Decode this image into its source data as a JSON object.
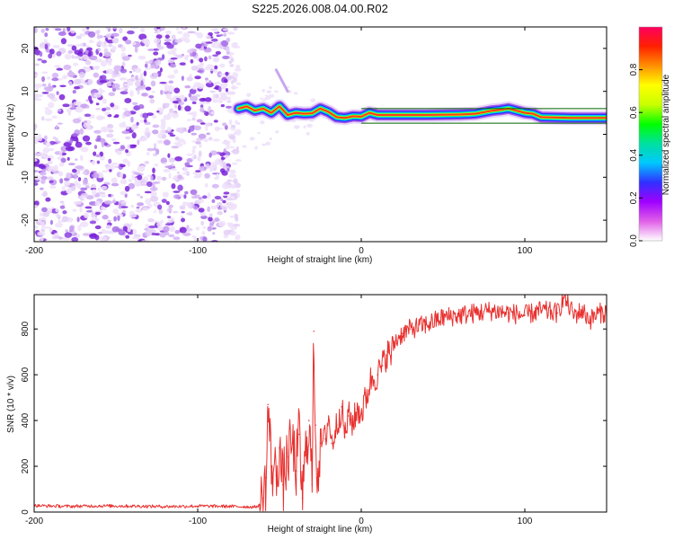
{
  "title": "S225.2026.008.04.00.R02",
  "chart_data": [
    {
      "type": "heatmap",
      "title": "S225.2026.008.04.00.R02",
      "xlabel": "Height of straight line (km)",
      "ylabel": "Frequency (Hz)",
      "xlim": [
        -200,
        150
      ],
      "ylim": [
        -25,
        25
      ],
      "xticks": [
        -200,
        -100,
        0,
        100
      ],
      "yticks": [
        -20,
        -10,
        0,
        10,
        20
      ],
      "noise_region_x": [
        -200,
        -75
      ],
      "signal_trace": {
        "x": [
          -75,
          -70,
          -65,
          -60,
          -55,
          -50,
          -45,
          -40,
          -35,
          -30,
          -25,
          -20,
          -15,
          -10,
          -5,
          0,
          5,
          10,
          20,
          40,
          60,
          70,
          80,
          85,
          90,
          95,
          100,
          105,
          110,
          130,
          150
        ],
        "frequency": [
          6,
          6.5,
          5.5,
          6,
          5,
          6.5,
          4.5,
          5,
          4.8,
          4.9,
          6,
          5.2,
          4,
          3.8,
          4.2,
          4.1,
          5,
          4.5,
          4.5,
          4.5,
          4.6,
          4.8,
          5.5,
          5.7,
          6,
          5.5,
          5,
          4.8,
          4,
          3.8,
          3.8
        ]
      },
      "colorbar": {
        "label": "Normalized spectral amplitude",
        "ticks": [
          "0.0",
          "0.2",
          "0.4",
          "0.6",
          "0.8"
        ],
        "range": [
          0,
          1
        ],
        "colors": [
          "#ffffff",
          "#e060e8",
          "#a000ff",
          "#3030ff",
          "#00c8ff",
          "#00e0a0",
          "#00ff00",
          "#c8ff00",
          "#ffff00",
          "#ff9000",
          "#ff2000",
          "#ff0060"
        ]
      }
    },
    {
      "type": "line",
      "xlabel": "Height of straight line (km)",
      "ylabel": "SNR (10 * v/v)",
      "xlim": [
        -200,
        150
      ],
      "ylim": [
        0,
        950
      ],
      "xticks": [
        -200,
        -100,
        0,
        100
      ],
      "yticks": [
        0,
        200,
        400,
        600,
        800
      ],
      "color": "#e8312f",
      "series": [
        {
          "name": "SNR",
          "x": [
            -200,
            -180,
            -160,
            -140,
            -120,
            -100,
            -80,
            -70,
            -65,
            -62,
            -60,
            -58,
            -57,
            -55,
            -52,
            -50,
            -48,
            -45,
            -42,
            -40,
            -38,
            -36,
            -34,
            -32,
            -30,
            -29,
            -28,
            -27,
            -25,
            -22,
            -20,
            -18,
            -15,
            -12,
            -10,
            -8,
            -5,
            -2,
            0,
            3,
            6,
            10,
            13,
            16,
            18,
            20,
            25,
            30,
            40,
            50,
            60,
            70,
            80,
            90,
            100,
            110,
            120,
            124,
            130,
            135,
            140,
            145,
            150
          ],
          "y": [
            28,
            25,
            27,
            26,
            24,
            26,
            25,
            23,
            22,
            30,
            60,
            150,
            470,
            200,
            160,
            280,
            120,
            240,
            300,
            180,
            340,
            60,
            250,
            400,
            120,
            790,
            380,
            150,
            300,
            320,
            420,
            300,
            380,
            460,
            330,
            420,
            390,
            450,
            430,
            500,
            580,
            600,
            640,
            700,
            680,
            740,
            780,
            800,
            820,
            850,
            860,
            870,
            880,
            870,
            860,
            880,
            870,
            940,
            860,
            880,
            840,
            870,
            870
          ]
        }
      ]
    }
  ]
}
